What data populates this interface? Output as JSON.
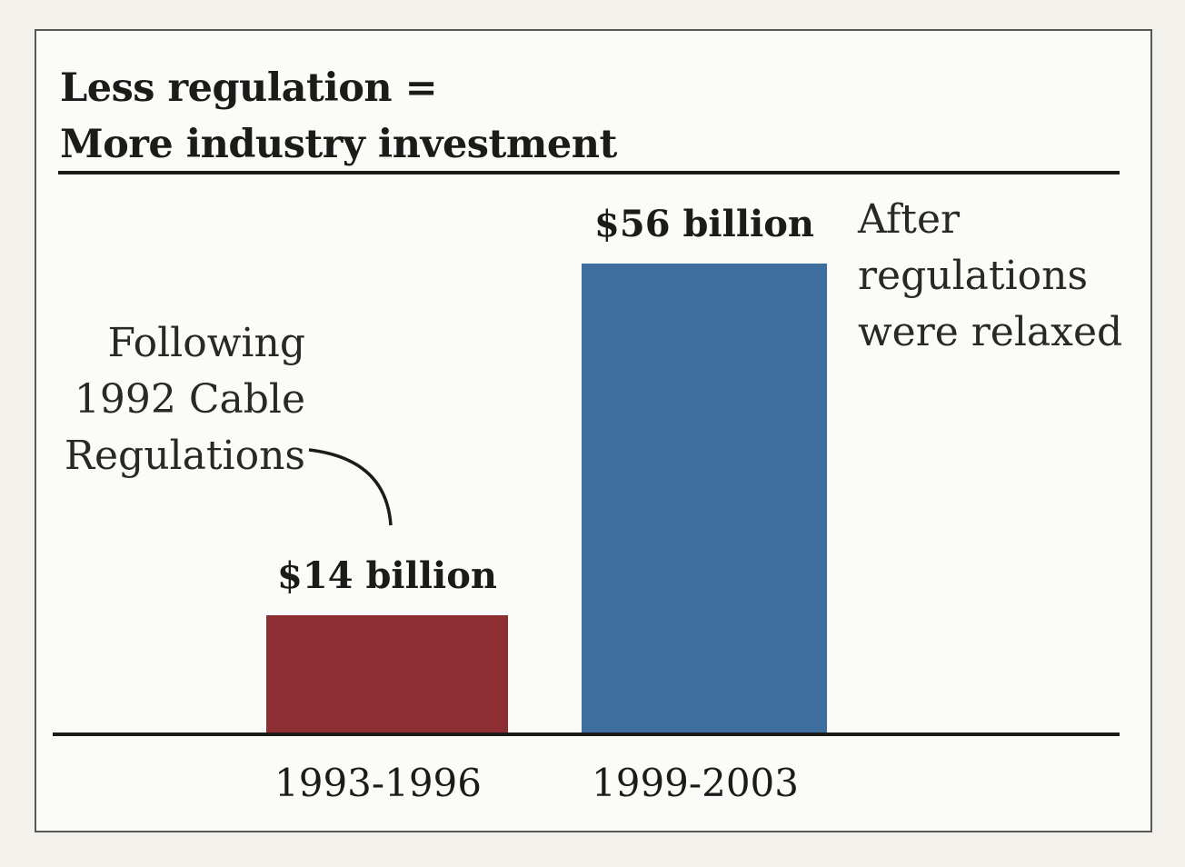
{
  "chart_data": {
    "type": "bar",
    "title": "Less regulation = More industry investment",
    "title_lines": [
      "Less regulation =",
      "More industry investment"
    ],
    "categories": [
      "1993-1996",
      "1999-2003"
    ],
    "values": [
      14,
      56
    ],
    "value_labels": [
      "$14 billion",
      "$56 billion"
    ],
    "unit": "$ billion",
    "ylim": [
      0,
      56
    ],
    "xlabel": "",
    "ylabel": "",
    "grid": false,
    "bar_colors": [
      "#8c2e32",
      "#3f6f9f"
    ],
    "annotations": [
      {
        "target": "1993-1996",
        "lines": [
          "Following",
          "1992 Cable",
          "Regulations"
        ]
      },
      {
        "target": "1999-2003",
        "lines": [
          "After",
          "regulations",
          "were relaxed"
        ]
      }
    ]
  }
}
